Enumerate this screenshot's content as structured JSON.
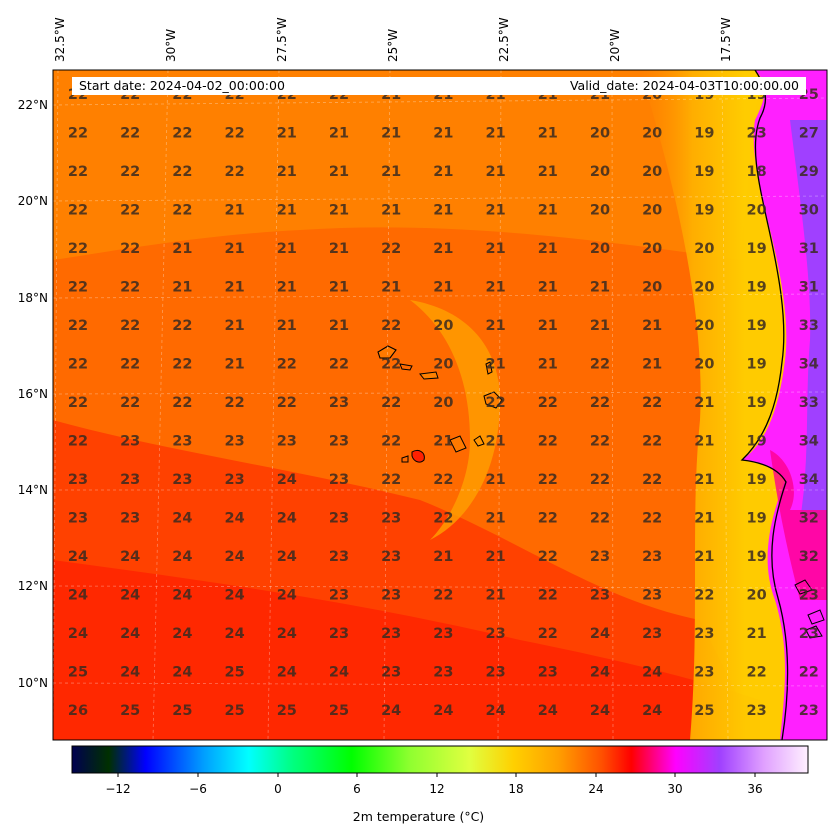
{
  "banner": {
    "start": "Start date: 2024-04-02_00:00:00",
    "valid": "Valid_date: 2024-04-03T10:00:00.00"
  },
  "lon_labels": [
    "32.5°W",
    "30°W",
    "27.5°W",
    "25°W",
    "22.5°W",
    "20°W",
    "17.5°W"
  ],
  "lat_labels": [
    "22°N",
    "20°N",
    "18°N",
    "16°N",
    "14°N",
    "12°N",
    "10°N"
  ],
  "colorbar": {
    "label": "2m temperature ($^\\circ$C)",
    "label_display": "2m temperature (°C)",
    "ticks": [
      "−12",
      "−6",
      "0",
      "6",
      "12",
      "18",
      "24",
      "30",
      "36"
    ],
    "range": [
      -15,
      40
    ]
  },
  "colors": {
    "warm_red": "#ff3000",
    "orange": "#ff7000",
    "light_orange": "#ff9000",
    "yellow": "#ffd000",
    "magenta": "#ff00ff",
    "purple": "#a040ff",
    "coast": "#000000"
  },
  "temperature_grid": [
    [
      "22",
      "22",
      "22",
      "22",
      "22",
      "22",
      "21",
      "21",
      "21",
      "21",
      "21",
      "20",
      "19",
      "19",
      "25"
    ],
    [
      "22",
      "22",
      "22",
      "22",
      "21",
      "21",
      "21",
      "21",
      "21",
      "21",
      "20",
      "20",
      "19",
      "23",
      "27"
    ],
    [
      "22",
      "22",
      "22",
      "22",
      "21",
      "21",
      "21",
      "21",
      "21",
      "21",
      "20",
      "20",
      "19",
      "18",
      "29"
    ],
    [
      "22",
      "22",
      "22",
      "21",
      "21",
      "21",
      "21",
      "21",
      "21",
      "21",
      "20",
      "20",
      "19",
      "20",
      "30"
    ],
    [
      "22",
      "22",
      "21",
      "21",
      "21",
      "21",
      "22",
      "21",
      "21",
      "21",
      "20",
      "20",
      "20",
      "19",
      "31"
    ],
    [
      "22",
      "22",
      "21",
      "21",
      "21",
      "21",
      "21",
      "21",
      "21",
      "21",
      "21",
      "20",
      "20",
      "19",
      "31"
    ],
    [
      "22",
      "22",
      "22",
      "21",
      "21",
      "21",
      "22",
      "20",
      "21",
      "21",
      "21",
      "21",
      "20",
      "19",
      "33"
    ],
    [
      "22",
      "22",
      "22",
      "21",
      "22",
      "22",
      "22",
      "20",
      "21",
      "21",
      "22",
      "21",
      "20",
      "19",
      "34"
    ],
    [
      "22",
      "22",
      "22",
      "22",
      "22",
      "23",
      "22",
      "20",
      "22",
      "22",
      "22",
      "22",
      "21",
      "19",
      "33"
    ],
    [
      "22",
      "23",
      "23",
      "23",
      "23",
      "23",
      "22",
      "21",
      "21",
      "22",
      "22",
      "22",
      "21",
      "19",
      "34"
    ],
    [
      "23",
      "23",
      "23",
      "23",
      "24",
      "23",
      "22",
      "22",
      "21",
      "22",
      "22",
      "22",
      "21",
      "19",
      "34"
    ],
    [
      "23",
      "23",
      "24",
      "24",
      "24",
      "23",
      "23",
      "22",
      "21",
      "22",
      "22",
      "22",
      "21",
      "19",
      "32"
    ],
    [
      "24",
      "24",
      "24",
      "24",
      "24",
      "23",
      "23",
      "21",
      "21",
      "22",
      "23",
      "23",
      "21",
      "19",
      "32"
    ],
    [
      "24",
      "24",
      "24",
      "24",
      "24",
      "23",
      "23",
      "22",
      "21",
      "22",
      "23",
      "23",
      "22",
      "20",
      "23"
    ],
    [
      "24",
      "24",
      "24",
      "24",
      "24",
      "23",
      "23",
      "23",
      "23",
      "22",
      "24",
      "23",
      "23",
      "21",
      "23"
    ],
    [
      "25",
      "24",
      "24",
      "25",
      "24",
      "24",
      "23",
      "23",
      "23",
      "23",
      "24",
      "24",
      "23",
      "22",
      "22"
    ],
    [
      "26",
      "25",
      "25",
      "25",
      "25",
      "25",
      "24",
      "24",
      "24",
      "24",
      "24",
      "24",
      "25",
      "23",
      "23"
    ]
  ]
}
